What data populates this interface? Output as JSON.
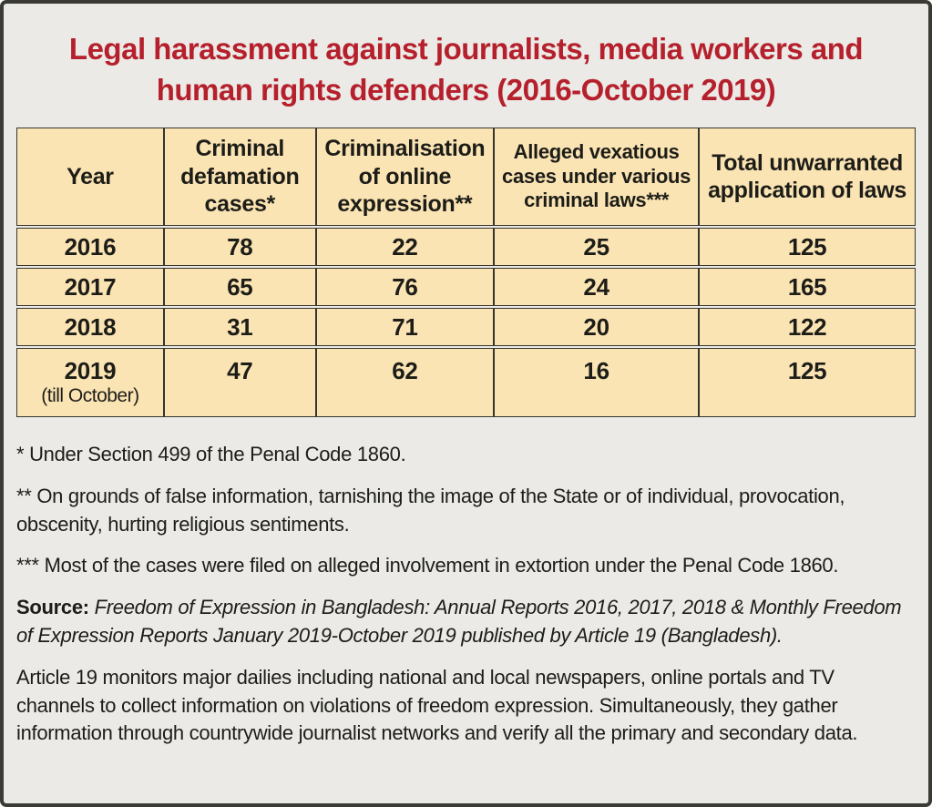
{
  "title": {
    "line1": "Legal harassment against journalists, media workers and",
    "line2": "human rights defenders (2016-October 2019)"
  },
  "table": {
    "headers": [
      "Year",
      "Criminal defamation cases*",
      "Criminalisation of online expression**",
      "Alleged vexatious cases under various criminal laws***",
      "Total unwarranted application of laws"
    ],
    "rows": [
      {
        "year": "2016",
        "values": [
          "78",
          "22",
          "25",
          "125"
        ]
      },
      {
        "year": "2017",
        "values": [
          "65",
          "76",
          "24",
          "165"
        ]
      },
      {
        "year": "2018",
        "values": [
          "31",
          "71",
          "20",
          "122"
        ]
      },
      {
        "year": "2019",
        "note": "(till October)",
        "values": [
          "47",
          "62",
          "16",
          "125"
        ]
      }
    ]
  },
  "footnotes": {
    "fn1": "* Under Section 499 of the Penal Code 1860.",
    "fn2": "** On grounds of false information, tarnishing the image of the State or of individual, provocation, obscenity, hurting religious sentiments.",
    "fn3": "*** Most of the cases were filed on alleged involvement in extortion under the Penal Code 1860."
  },
  "source": {
    "label": "Source:",
    "text": " Freedom of Expression in Bangladesh: Annual Reports 2016, 2017, 2018 & Monthly Freedom of Expression Reports January 2019-October 2019 published by Article 19 (Bangladesh)."
  },
  "paragraph": "Article 19 monitors major dailies including national and local newspapers, online portals and TV channels to collect information on violations of freedom expression. Simultaneously, they gather information through countrywide journalist networks and verify all the primary and secondary data.",
  "colors": {
    "title_red": "#b5202c",
    "cell_background": "#fbe4b4",
    "page_background": "#ebeae6",
    "border": "#35352d",
    "text": "#1d1d18"
  },
  "chart_data": {
    "type": "table",
    "title": "Legal harassment against journalists, media workers and human rights defenders (2016-October 2019)",
    "categories": [
      "2016",
      "2017",
      "2018",
      "2019 (till October)"
    ],
    "series": [
      {
        "name": "Criminal defamation cases*",
        "values": [
          78,
          65,
          31,
          47
        ]
      },
      {
        "name": "Criminalisation of online expression**",
        "values": [
          22,
          76,
          71,
          62
        ]
      },
      {
        "name": "Alleged vexatious cases under various criminal laws***",
        "values": [
          25,
          24,
          20,
          16
        ]
      },
      {
        "name": "Total unwarranted application of laws",
        "values": [
          125,
          165,
          122,
          125
        ]
      }
    ],
    "layout": {
      "header_row": true,
      "grid": true
    }
  }
}
